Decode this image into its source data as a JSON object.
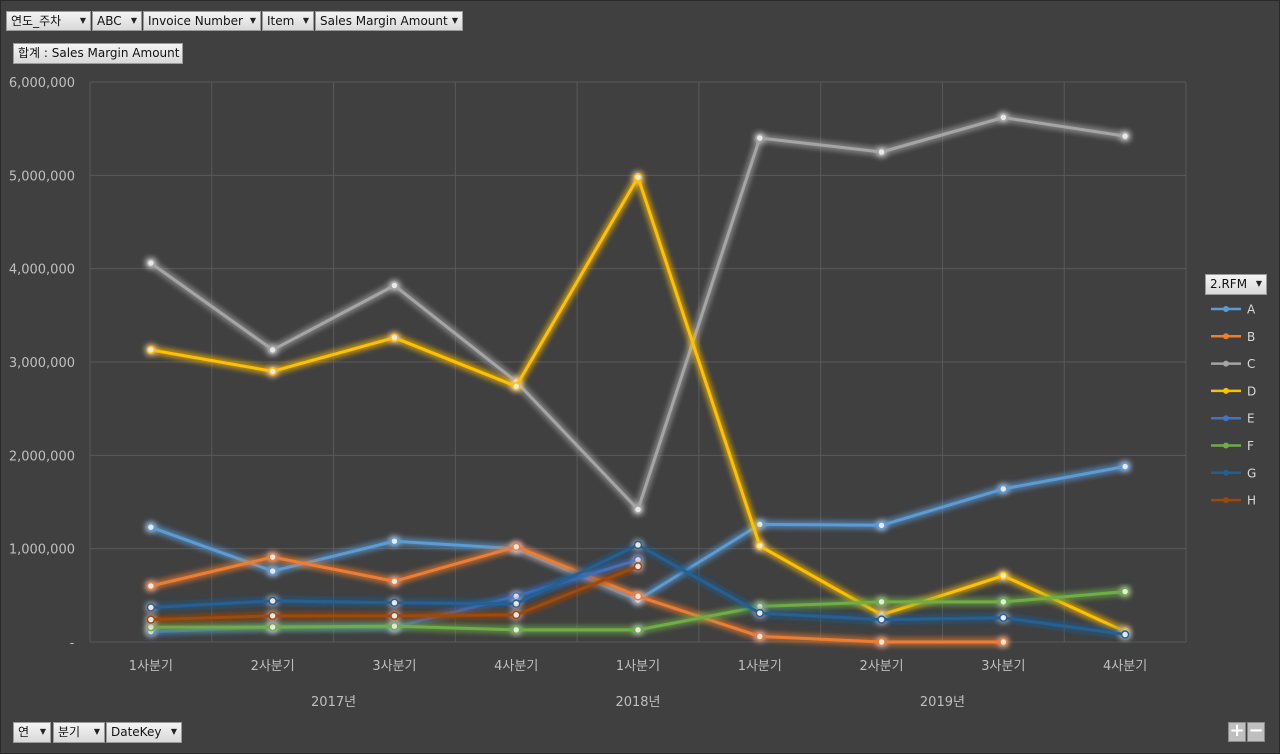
{
  "filters_top": [
    {
      "label": "연도_주차"
    },
    {
      "label": "ABC"
    },
    {
      "label": "Invoice Number"
    },
    {
      "label": "Item"
    },
    {
      "label": "Sales Margin Amount"
    }
  ],
  "value_field": "합계 : Sales Margin Amount",
  "filters_bottom": [
    {
      "label": "연"
    },
    {
      "label": "분기"
    },
    {
      "label": "DateKey"
    }
  ],
  "legend_title": "2.RFM",
  "zoom": {
    "plus": "+",
    "minus": "−"
  },
  "chart_data": {
    "type": "line",
    "categories": [
      "1사분기",
      "2사분기",
      "3사분기",
      "4사분기",
      "1사분기",
      "1사분기",
      "2사분기",
      "3사분기",
      "4사분기"
    ],
    "groups": [
      {
        "label": "2017년",
        "span": [
          0,
          3
        ]
      },
      {
        "label": "2018년",
        "span": [
          4,
          4
        ]
      },
      {
        "label": "2019년",
        "span": [
          5,
          8
        ]
      }
    ],
    "ylim": [
      0,
      6000000
    ],
    "yticks": [
      {
        "value": 0,
        "label": "-"
      },
      {
        "value": 1000000,
        "label": "1,000,000"
      },
      {
        "value": 2000000,
        "label": "2,000,000"
      },
      {
        "value": 3000000,
        "label": "3,000,000"
      },
      {
        "value": 4000000,
        "label": "4,000,000"
      },
      {
        "value": 5000000,
        "label": "5,000,000"
      },
      {
        "value": 6000000,
        "label": "6,000,000"
      }
    ],
    "grid": true,
    "legend_position": "right",
    "series": [
      {
        "name": "A",
        "color": "#5b9bd5",
        "values": [
          1230000,
          760000,
          1080000,
          1000000,
          450000,
          1260000,
          1250000,
          1640000,
          1880000
        ]
      },
      {
        "name": "B",
        "color": "#ed7d31",
        "values": [
          600000,
          910000,
          650000,
          1020000,
          490000,
          60000,
          0,
          0,
          null
        ]
      },
      {
        "name": "C",
        "color": "#a5a5a5",
        "values": [
          4060000,
          3130000,
          3820000,
          2790000,
          1420000,
          5400000,
          5250000,
          5620000,
          5420000
        ]
      },
      {
        "name": "D",
        "color": "#ffc000",
        "values": [
          3130000,
          2900000,
          3260000,
          2740000,
          4980000,
          1030000,
          290000,
          710000,
          110000
        ]
      },
      {
        "name": "E",
        "color": "#4472c4",
        "values": [
          110000,
          160000,
          160000,
          490000,
          880000,
          null,
          null,
          null,
          null
        ]
      },
      {
        "name": "F",
        "color": "#70ad47",
        "values": [
          160000,
          160000,
          170000,
          130000,
          130000,
          380000,
          430000,
          430000,
          540000
        ]
      },
      {
        "name": "G",
        "color": "#255e91",
        "values": [
          370000,
          440000,
          420000,
          410000,
          1040000,
          310000,
          240000,
          260000,
          80000
        ]
      },
      {
        "name": "H",
        "color": "#9e480e",
        "values": [
          240000,
          280000,
          280000,
          290000,
          810000,
          null,
          null,
          null,
          null
        ]
      }
    ]
  }
}
